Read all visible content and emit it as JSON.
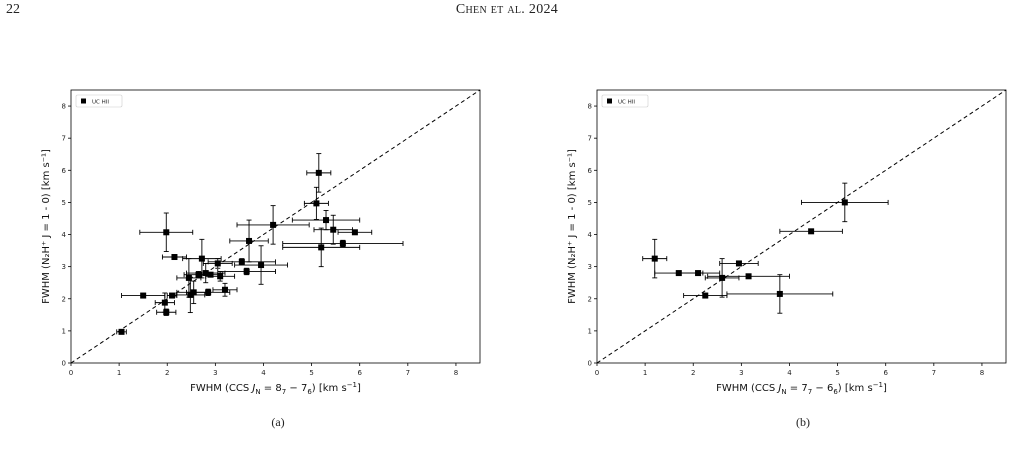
{
  "page": {
    "number": "22",
    "running_head": "Chen et al. 2024"
  },
  "chart_data": [
    {
      "type": "scatter",
      "panel_label": "(a)",
      "xlabel_main": "FWHM (CCS ",
      "xlabel_transition": "J",
      "xlabel_sub": "N",
      "xlabel_eq": " = 8",
      "xlabel_s1": "7",
      "xlabel_mid": " − 7",
      "xlabel_s2": "6",
      "xlabel_tail": ") [km s",
      "xlabel_exp": "−1",
      "xlabel_end": "]",
      "ylabel": "FWHM (N₂H⁺ J = 1 - 0) [km s⁻¹]",
      "legend": "UC HII",
      "legend_position": "top-left",
      "xlim": [
        0,
        8.5
      ],
      "ylim": [
        0,
        8.5
      ],
      "xticks": [
        "0",
        "1",
        "2",
        "3",
        "4",
        "5",
        "6",
        "7",
        "8"
      ],
      "yticks": [
        "0",
        "1",
        "2",
        "3",
        "4",
        "5",
        "6",
        "7",
        "8"
      ],
      "diagonal": "y = x dashed",
      "points": [
        {
          "x": 1.05,
          "y": 0.97,
          "xerr": 0.1,
          "yerr": 0.05
        },
        {
          "x": 1.5,
          "y": 2.1,
          "xerr": 0.45,
          "yerr": 0.05
        },
        {
          "x": 1.95,
          "y": 1.88,
          "xerr": 0.2,
          "yerr": 0.3
        },
        {
          "x": 1.98,
          "y": 1.58,
          "xerr": 0.2,
          "yerr": 0.1
        },
        {
          "x": 1.98,
          "y": 4.07,
          "xerr": 0.55,
          "yerr": 0.6
        },
        {
          "x": 2.1,
          "y": 2.1,
          "xerr": 0.1,
          "yerr": 0.05
        },
        {
          "x": 2.15,
          "y": 3.3,
          "xerr": 0.25,
          "yerr": 0.05
        },
        {
          "x": 2.45,
          "y": 2.65,
          "xerr": 0.25,
          "yerr": 0.6
        },
        {
          "x": 2.48,
          "y": 2.12,
          "xerr": 0.3,
          "yerr": 0.55
        },
        {
          "x": 2.55,
          "y": 2.2,
          "xerr": 0.35,
          "yerr": 0.35
        },
        {
          "x": 2.65,
          "y": 2.75,
          "xerr": 0.3,
          "yerr": 0.1
        },
        {
          "x": 2.72,
          "y": 3.25,
          "xerr": 0.4,
          "yerr": 0.6
        },
        {
          "x": 2.8,
          "y": 2.8,
          "xerr": 0.4,
          "yerr": 0.3
        },
        {
          "x": 2.85,
          "y": 2.2,
          "xerr": 0.45,
          "yerr": 0.1
        },
        {
          "x": 2.9,
          "y": 2.75,
          "xerr": 0.25,
          "yerr": 0.05
        },
        {
          "x": 3.05,
          "y": 3.1,
          "xerr": 0.3,
          "yerr": 0.15
        },
        {
          "x": 3.1,
          "y": 2.7,
          "xerr": 0.3,
          "yerr": 0.15
        },
        {
          "x": 3.2,
          "y": 2.28,
          "xerr": 0.25,
          "yerr": 0.2
        },
        {
          "x": 3.55,
          "y": 3.15,
          "xerr": 0.7,
          "yerr": 0.1
        },
        {
          "x": 3.65,
          "y": 2.85,
          "xerr": 0.6,
          "yerr": 0.1
        },
        {
          "x": 3.7,
          "y": 3.8,
          "xerr": 0.4,
          "yerr": 0.65
        },
        {
          "x": 3.95,
          "y": 3.05,
          "xerr": 0.55,
          "yerr": 0.6
        },
        {
          "x": 4.2,
          "y": 4.3,
          "xerr": 0.75,
          "yerr": 0.6
        },
        {
          "x": 5.1,
          "y": 4.97,
          "xerr": 0.25,
          "yerr": 0.5
        },
        {
          "x": 5.15,
          "y": 5.92,
          "xerr": 0.25,
          "yerr": 0.6
        },
        {
          "x": 5.2,
          "y": 3.6,
          "xerr": 0.8,
          "yerr": 0.6
        },
        {
          "x": 5.3,
          "y": 4.45,
          "xerr": 0.7,
          "yerr": 0.3
        },
        {
          "x": 5.45,
          "y": 4.15,
          "xerr": 0.4,
          "yerr": 0.45
        },
        {
          "x": 5.65,
          "y": 3.72,
          "xerr": 1.25,
          "yerr": 0.1
        },
        {
          "x": 5.9,
          "y": 4.07,
          "xerr": 0.35,
          "yerr": 0.05
        }
      ]
    },
    {
      "type": "scatter",
      "panel_label": "(b)",
      "xlabel_main": "FWHM (CCS ",
      "xlabel_transition": "J",
      "xlabel_sub": "N",
      "xlabel_eq": " = 7",
      "xlabel_s1": "7",
      "xlabel_mid": " − 6",
      "xlabel_s2": "6",
      "xlabel_tail": ") [km s",
      "xlabel_exp": "−1",
      "xlabel_end": "]",
      "ylabel": "FWHM (N₂H⁺ J = 1 - 0) [km s⁻¹]",
      "legend": "UC HII",
      "legend_position": "top-left",
      "xlim": [
        0,
        8.5
      ],
      "ylim": [
        0,
        8.5
      ],
      "xticks": [
        "0",
        "1",
        "2",
        "3",
        "4",
        "5",
        "6",
        "7",
        "8"
      ],
      "yticks": [
        "0",
        "1",
        "2",
        "3",
        "4",
        "5",
        "6",
        "7",
        "8"
      ],
      "diagonal": "y = x dashed",
      "points": [
        {
          "x": 1.2,
          "y": 3.25,
          "xerr": 0.25,
          "yerr": 0.6
        },
        {
          "x": 1.7,
          "y": 2.8,
          "xerr": 0.5,
          "yerr": 0.05
        },
        {
          "x": 2.1,
          "y": 2.8,
          "xerr": 0.45,
          "yerr": 0.05
        },
        {
          "x": 2.25,
          "y": 2.1,
          "xerr": 0.45,
          "yerr": 0.05
        },
        {
          "x": 2.6,
          "y": 2.65,
          "xerr": 0.35,
          "yerr": 0.6
        },
        {
          "x": 2.95,
          "y": 3.1,
          "xerr": 0.4,
          "yerr": 0.05
        },
        {
          "x": 3.15,
          "y": 2.7,
          "xerr": 0.85,
          "yerr": 0.05
        },
        {
          "x": 3.8,
          "y": 2.15,
          "xerr": 1.1,
          "yerr": 0.6
        },
        {
          "x": 4.45,
          "y": 4.1,
          "xerr": 0.65,
          "yerr": 0.05
        },
        {
          "x": 5.15,
          "y": 5.0,
          "xerr": 0.9,
          "yerr": 0.6
        }
      ]
    }
  ]
}
